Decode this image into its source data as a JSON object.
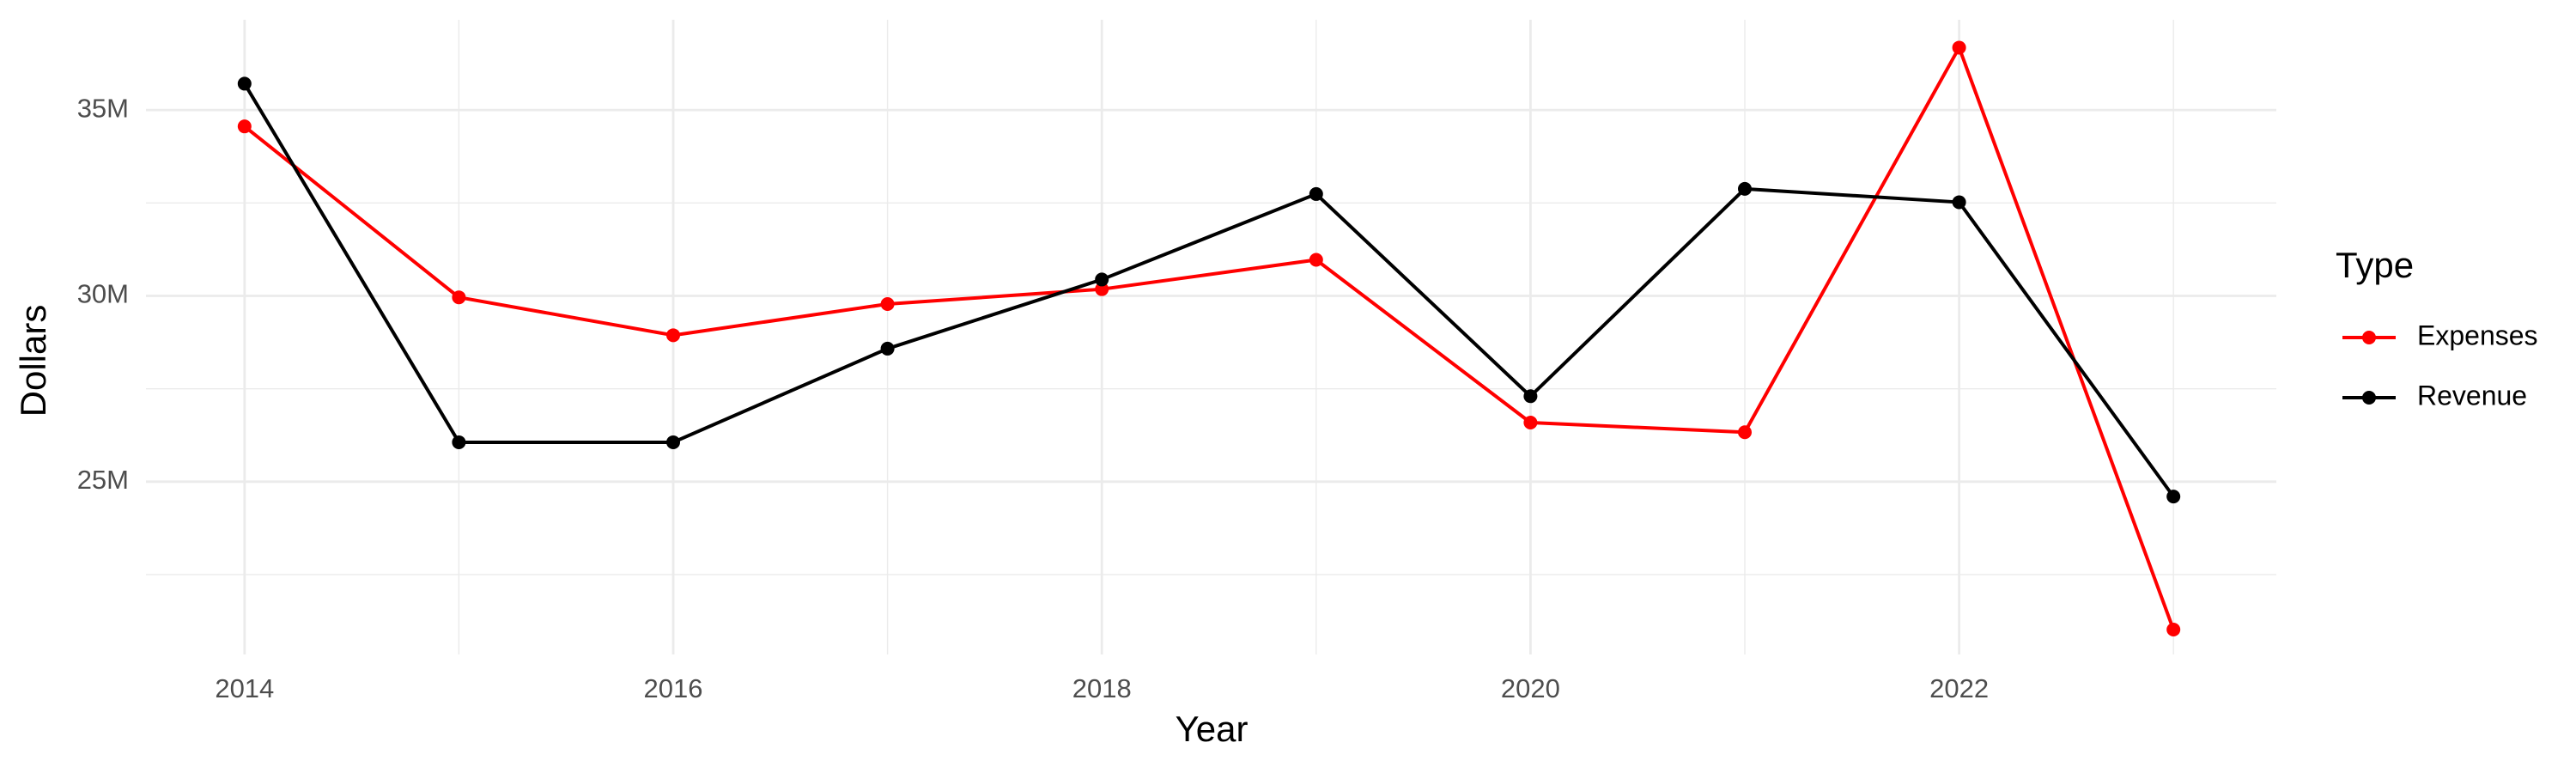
{
  "chart_data": {
    "type": "line",
    "x_label": "Year",
    "y_label": "Dollars",
    "legend_title": "Type",
    "x": [
      2014,
      2015,
      2016,
      2017,
      2018,
      2019,
      2020,
      2021,
      2022,
      2023
    ],
    "series": [
      {
        "name": "Expenses",
        "color": "#ff0000",
        "values": [
          34560000,
          29960000,
          28940000,
          29780000,
          30180000,
          30970000,
          26590000,
          26330000,
          36680000,
          21020000
        ]
      },
      {
        "name": "Revenue",
        "color": "#000000",
        "values": [
          35710000,
          26060000,
          26060000,
          28580000,
          30440000,
          32740000,
          27300000,
          32880000,
          32520000,
          24600000
        ]
      }
    ],
    "xlim": [
      2013.54,
      2023.48
    ],
    "ylim": [
      20350000,
      37430000
    ],
    "xticks": [
      2014,
      2016,
      2018,
      2020,
      2022
    ],
    "yticks": [
      {
        "value": 25000000,
        "label": "25M"
      },
      {
        "value": 30000000,
        "label": "30M"
      },
      {
        "value": 35000000,
        "label": "35M"
      }
    ],
    "minor_xticks": [
      2015,
      2017,
      2019,
      2021,
      2023
    ],
    "minor_yticks": [
      22500000,
      27500000,
      32500000
    ],
    "grid": true,
    "legend": "right"
  }
}
